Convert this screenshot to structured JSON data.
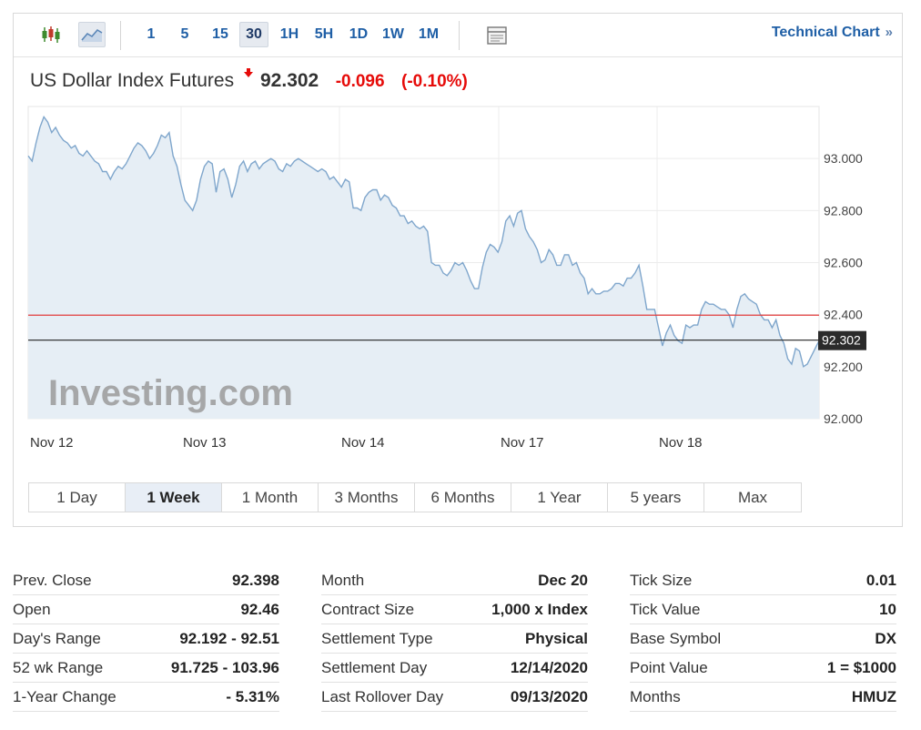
{
  "toolbar": {
    "timeframes": [
      "1",
      "5",
      "15",
      "30",
      "1H",
      "5H",
      "1D",
      "1W",
      "1M"
    ],
    "active_timeframe": "30",
    "technical_chart_label": "Technical Chart",
    "technical_chart_chevron": "»"
  },
  "header": {
    "instrument": "US Dollar Index Futures",
    "last": "92.302",
    "change": "-0.096",
    "change_pct": "(-0.10%)"
  },
  "chart_data": {
    "type": "area",
    "x_labels": [
      "Nov 12",
      "Nov 13",
      "Nov 14",
      "Nov 17",
      "Nov 18"
    ],
    "y_ticks": [
      "93.000",
      "92.800",
      "92.600",
      "92.400",
      "92.200",
      "92.000"
    ],
    "ylim": [
      92.0,
      93.2
    ],
    "reference_lines": [
      {
        "name": "previous-close",
        "value": 92.398,
        "color": "#e23b3b"
      },
      {
        "name": "last-price",
        "value": 92.302,
        "color": "#222222",
        "label": "92.302"
      }
    ],
    "series": [
      {
        "values": [
          93.01,
          92.99,
          93.06,
          93.12,
          93.16,
          93.14,
          93.1,
          93.12,
          93.09,
          93.07,
          93.06,
          93.04,
          93.05,
          93.02,
          93.01,
          93.03,
          93.01,
          92.99,
          92.98,
          92.95,
          92.95,
          92.92,
          92.95,
          92.97,
          92.96,
          92.98,
          93.01,
          93.04,
          93.06,
          93.05,
          93.03,
          93.0,
          93.02,
          93.05,
          93.09,
          93.08,
          93.1,
          93.01,
          92.97,
          92.9,
          92.84,
          92.82,
          92.8,
          92.84,
          92.92,
          92.97,
          92.99,
          92.98,
          92.87,
          92.95,
          92.96,
          92.92,
          92.85,
          92.9,
          92.97,
          92.99,
          92.95,
          92.98,
          92.99,
          92.96,
          92.98,
          92.99,
          93.0,
          92.99,
          92.96,
          92.95,
          92.98,
          92.97,
          92.99,
          93.0,
          92.99,
          92.98,
          92.97,
          92.96,
          92.95,
          92.96,
          92.95,
          92.92,
          92.93,
          92.91,
          92.89,
          92.92,
          92.91,
          92.81,
          92.81,
          92.8,
          92.85,
          92.87,
          92.88,
          92.88,
          92.84,
          92.86,
          92.85,
          92.82,
          92.81,
          92.78,
          92.78,
          92.75,
          92.76,
          92.74,
          92.73,
          92.74,
          92.72,
          92.6,
          92.59,
          92.59,
          92.56,
          92.55,
          92.57,
          92.6,
          92.59,
          92.6,
          92.57,
          92.53,
          92.5,
          92.5,
          92.58,
          92.64,
          92.67,
          92.66,
          92.64,
          92.68,
          92.76,
          92.78,
          92.74,
          92.79,
          92.8,
          92.73,
          92.7,
          92.68,
          92.65,
          92.6,
          92.61,
          92.65,
          92.63,
          92.59,
          92.59,
          92.63,
          92.63,
          92.59,
          92.6,
          92.56,
          92.54,
          92.48,
          92.5,
          92.48,
          92.48,
          92.49,
          92.49,
          92.5,
          92.52,
          92.52,
          92.51,
          92.54,
          92.54,
          92.56,
          92.59,
          92.51,
          92.42,
          92.42,
          92.42,
          92.35,
          92.28,
          92.33,
          92.36,
          92.32,
          92.3,
          92.29,
          92.36,
          92.35,
          92.36,
          92.36,
          92.42,
          92.45,
          92.44,
          92.44,
          92.43,
          92.42,
          92.42,
          92.4,
          92.35,
          92.42,
          92.47,
          92.48,
          92.46,
          92.45,
          92.44,
          92.4,
          92.38,
          92.38,
          92.35,
          92.38,
          92.32,
          92.29,
          92.23,
          92.21,
          92.27,
          92.26,
          92.2,
          92.21,
          92.24,
          92.27,
          92.3
        ]
      }
    ],
    "watermark": "Investing.com",
    "grid": true,
    "y_axis_side": "right"
  },
  "ranges": [
    "1 Day",
    "1 Week",
    "1 Month",
    "3 Months",
    "6 Months",
    "1 Year",
    "5 years",
    "Max"
  ],
  "active_range": "1 Week",
  "stats": [
    [
      {
        "label": "Prev. Close",
        "value": "92.398"
      },
      {
        "label": "Open",
        "value": "92.46"
      },
      {
        "label": "Day's Range",
        "value": "92.192 - 92.51"
      },
      {
        "label": "52 wk Range",
        "value": "91.725 - 103.96"
      },
      {
        "label": "1-Year Change",
        "value": "- 5.31%"
      }
    ],
    [
      {
        "label": "Month",
        "value": "Dec 20"
      },
      {
        "label": "Contract Size",
        "value": "1,000 x Index"
      },
      {
        "label": "Settlement Type",
        "value": "Physical"
      },
      {
        "label": "Settlement Day",
        "value": "12/14/2020"
      },
      {
        "label": "Last Rollover Day",
        "value": "09/13/2020"
      }
    ],
    [
      {
        "label": "Tick Size",
        "value": "0.01"
      },
      {
        "label": "Tick Value",
        "value": "10"
      },
      {
        "label": "Base Symbol",
        "value": "DX"
      },
      {
        "label": "Point Value",
        "value": "1 = $1000"
      },
      {
        "label": "Months",
        "value": "HMUZ"
      }
    ]
  ],
  "colors": {
    "link": "#1f5fa6",
    "negative": "#e60b09",
    "line": "#7fa6cc",
    "area": "#e6eef5"
  }
}
